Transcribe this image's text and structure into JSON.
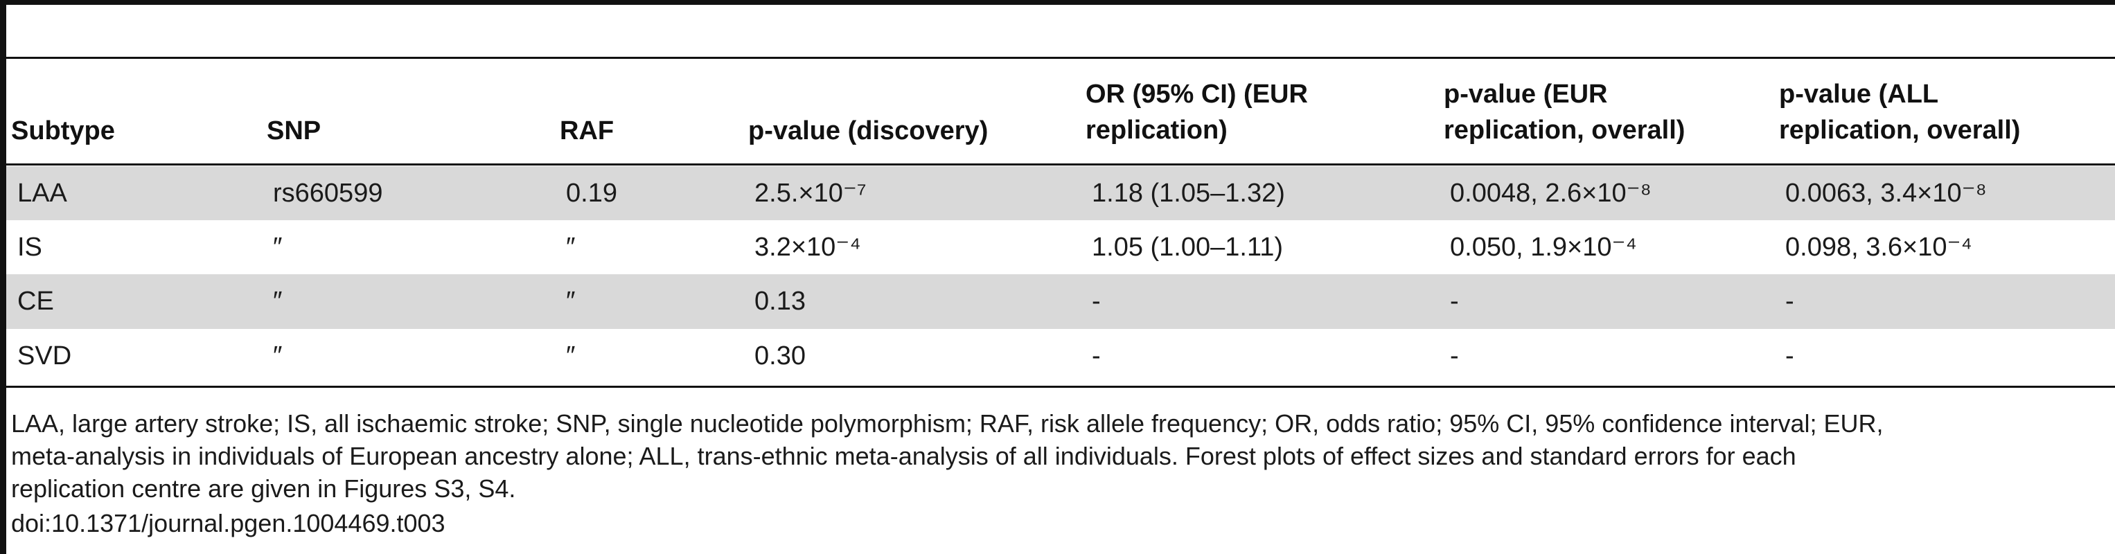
{
  "table": {
    "headers": [
      [
        "Subtype"
      ],
      [
        "SNP"
      ],
      [
        "RAF"
      ],
      [
        "p-value (discovery)"
      ],
      [
        "OR (95% CI) (EUR",
        "replication)"
      ],
      [
        "p-value (EUR",
        "replication, overall)"
      ],
      [
        "p-value (ALL",
        "replication, overall)"
      ]
    ],
    "rows": [
      [
        "LAA",
        "rs660599",
        "0.19",
        "2.5.×10⁻⁷",
        "1.18 (1.05–1.32)",
        "0.0048, 2.6×10⁻⁸",
        "0.0063, 3.4×10⁻⁸"
      ],
      [
        "IS",
        "″",
        "″",
        "3.2×10⁻⁴",
        "1.05 (1.00–1.11)",
        "0.050, 1.9×10⁻⁴",
        "0.098, 3.6×10⁻⁴"
      ],
      [
        "CE",
        "″",
        "″",
        "0.13",
        "-",
        "-",
        "-"
      ],
      [
        "SVD",
        "″",
        "″",
        "0.30",
        "-",
        "-",
        "-"
      ]
    ]
  },
  "footnote": {
    "lines": [
      "LAA, large artery stroke; IS, all ischaemic stroke; SNP, single nucleotide polymorphism; RAF, risk allele frequency; OR, odds ratio; 95% CI, 95% confidence interval; EUR,",
      "meta-analysis in individuals of European ancestry alone; ALL, trans-ethnic meta-analysis of all individuals. Forest plots of effect sizes and standard errors for each",
      "replication centre are given in Figures S3, S4."
    ],
    "doi": "doi:10.1371/journal.pgen.1004469.t003"
  }
}
